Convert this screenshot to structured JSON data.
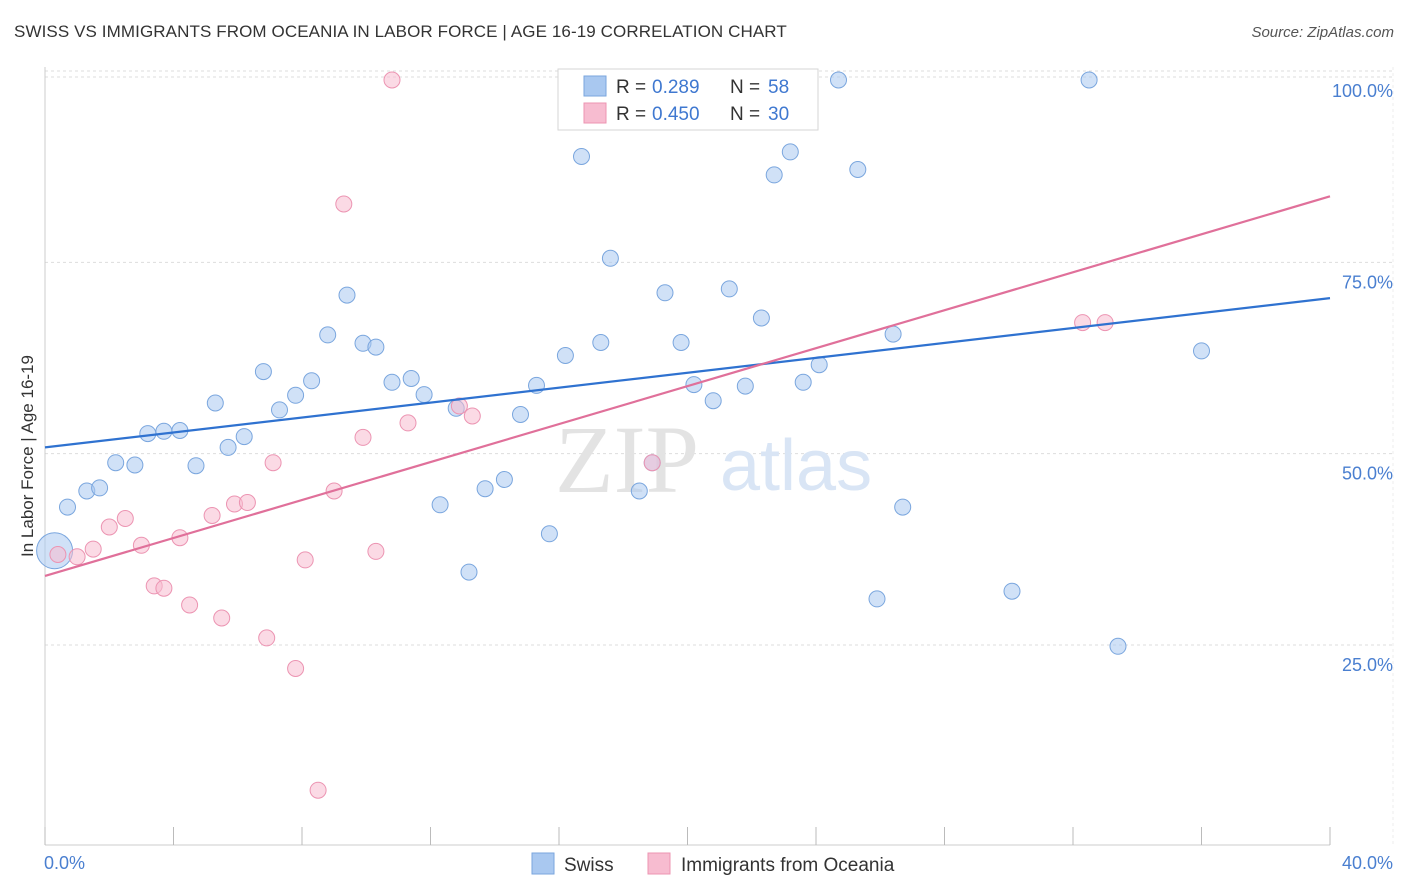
{
  "header": {
    "title": "SWISS VS IMMIGRANTS FROM OCEANIA IN LABOR FORCE | AGE 16-19 CORRELATION CHART",
    "source": "Source: ZipAtlas.com"
  },
  "chart_data": {
    "type": "scatter",
    "title": "SWISS VS IMMIGRANTS FROM OCEANIA IN LABOR FORCE | AGE 16-19 CORRELATION CHART",
    "xlabel": "",
    "ylabel": "In Labor Force | Age 16-19",
    "xlim": [
      0,
      40
    ],
    "ylim": [
      0,
      103
    ],
    "x_tick_labels": [
      "0.0%",
      "40.0%"
    ],
    "y_ticks": [
      25,
      50,
      75,
      100
    ],
    "y_tick_labels": [
      "25.0%",
      "50.0%",
      "75.0%",
      "100.0%"
    ],
    "watermark": {
      "zip": "ZIP",
      "atlas": "atlas"
    },
    "legend_stats": [
      {
        "r_label": "R =",
        "r_value": "0.289",
        "n_label": "N =",
        "n_value": "58"
      },
      {
        "r_label": "R =",
        "r_value": "0.450",
        "n_label": "N =",
        "n_value": "30"
      }
    ],
    "series": [
      {
        "name": "Swiss",
        "color": "#a9c8f0",
        "stroke": "#7aa6de",
        "line_color": "#2f72d0",
        "trend": {
          "x0": 0,
          "y0": 52.0,
          "x1": 40,
          "y1": 71.5
        },
        "points": [
          [
            0.3,
            38.5
          ],
          [
            0.7,
            44.2
          ],
          [
            1.3,
            46.3
          ],
          [
            1.7,
            46.7
          ],
          [
            2.2,
            50.0
          ],
          [
            2.8,
            49.7
          ],
          [
            3.2,
            53.8
          ],
          [
            3.7,
            54.1
          ],
          [
            4.2,
            54.2
          ],
          [
            4.7,
            49.6
          ],
          [
            5.3,
            57.8
          ],
          [
            5.7,
            52.0
          ],
          [
            6.2,
            53.4
          ],
          [
            6.8,
            61.9
          ],
          [
            7.3,
            56.9
          ],
          [
            7.8,
            58.8
          ],
          [
            8.3,
            60.7
          ],
          [
            8.8,
            66.7
          ],
          [
            9.4,
            71.9
          ],
          [
            9.9,
            65.6
          ],
          [
            10.3,
            65.1
          ],
          [
            10.8,
            60.5
          ],
          [
            11.4,
            61.0
          ],
          [
            11.8,
            58.9
          ],
          [
            12.3,
            44.5
          ],
          [
            12.8,
            57.1
          ],
          [
            13.2,
            35.7
          ],
          [
            13.7,
            46.6
          ],
          [
            14.3,
            47.8
          ],
          [
            14.8,
            56.3
          ],
          [
            15.3,
            60.1
          ],
          [
            15.7,
            40.7
          ],
          [
            16.2,
            64.0
          ],
          [
            16.7,
            90.0
          ],
          [
            17.3,
            65.7
          ],
          [
            17.6,
            76.7
          ],
          [
            18.5,
            46.3
          ],
          [
            18.9,
            50.0
          ],
          [
            19.3,
            72.2
          ],
          [
            19.8,
            65.7
          ],
          [
            20.2,
            60.2
          ],
          [
            20.8,
            58.1
          ],
          [
            21.3,
            72.7
          ],
          [
            21.8,
            60.0
          ],
          [
            22.3,
            68.9
          ],
          [
            22.7,
            87.6
          ],
          [
            23.2,
            90.6
          ],
          [
            23.6,
            60.5
          ],
          [
            24.1,
            62.8
          ],
          [
            24.7,
            100.0
          ],
          [
            25.3,
            88.3
          ],
          [
            25.9,
            32.2
          ],
          [
            26.4,
            66.8
          ],
          [
            26.7,
            44.2
          ],
          [
            30.1,
            33.2
          ],
          [
            32.5,
            100.0
          ],
          [
            33.4,
            26.0
          ],
          [
            36.0,
            64.6
          ]
        ]
      },
      {
        "name": "Immigrants from Oceania",
        "color": "#f7bcd0",
        "stroke": "#ec94b2",
        "line_color": "#e0709a",
        "trend": {
          "x0": 0,
          "y0": 35.2,
          "x1": 40,
          "y1": 84.8
        },
        "points": [
          [
            0.4,
            38.0
          ],
          [
            1.0,
            37.7
          ],
          [
            1.5,
            38.7
          ],
          [
            2.0,
            41.6
          ],
          [
            2.5,
            42.7
          ],
          [
            3.0,
            39.2
          ],
          [
            3.4,
            33.9
          ],
          [
            3.7,
            33.6
          ],
          [
            4.2,
            40.2
          ],
          [
            4.5,
            31.4
          ],
          [
            5.2,
            43.1
          ],
          [
            5.5,
            29.7
          ],
          [
            5.9,
            44.6
          ],
          [
            6.3,
            44.8
          ],
          [
            6.9,
            27.1
          ],
          [
            7.1,
            50.0
          ],
          [
            7.8,
            23.1
          ],
          [
            8.1,
            37.3
          ],
          [
            8.5,
            7.2
          ],
          [
            9.0,
            46.3
          ],
          [
            9.3,
            83.8
          ],
          [
            9.9,
            53.3
          ],
          [
            10.3,
            38.4
          ],
          [
            10.8,
            100.0
          ],
          [
            11.3,
            55.2
          ],
          [
            12.9,
            57.4
          ],
          [
            13.3,
            56.1
          ],
          [
            18.9,
            50.0
          ],
          [
            32.3,
            68.3
          ],
          [
            33.0,
            68.3
          ]
        ]
      }
    ]
  },
  "bottom_legend": {
    "items": [
      "Swiss",
      "Immigrants from Oceania"
    ]
  }
}
